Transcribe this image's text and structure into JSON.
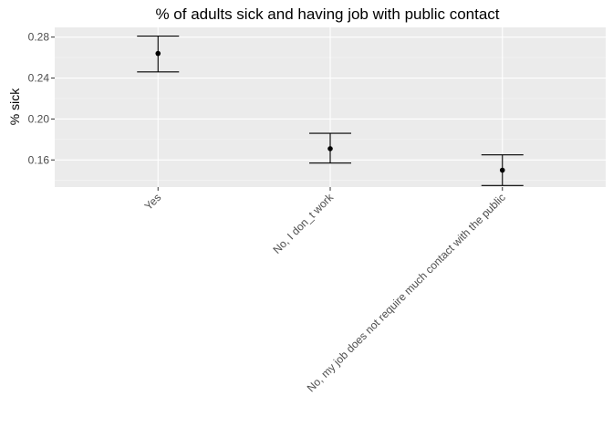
{
  "chart_data": {
    "type": "errorbar",
    "title": "% of adults sick and having job with public contact",
    "xlabel": "",
    "ylabel": "% sick",
    "categories": [
      "Yes",
      "No, I don_t work",
      "No, my job does not require much contact with the public"
    ],
    "values": [
      0.264,
      0.171,
      0.15
    ],
    "lower": [
      0.246,
      0.157,
      0.135
    ],
    "upper": [
      0.281,
      0.186,
      0.165
    ],
    "ylim": [
      0.1335,
      0.2895
    ],
    "yticks": [
      0.16,
      0.2,
      0.24,
      0.28
    ],
    "ytick_labels": [
      "0.16",
      "0.20",
      "0.24",
      "0.28"
    ],
    "grid": true,
    "legend": "none",
    "colors": {
      "panel_background": "#ebebeb",
      "grid_major": "#ffffff",
      "grid_minor": "#f5f5f5",
      "marks": "#000000",
      "tick_text": "#4d4d4d",
      "tick_mark": "#333333"
    }
  }
}
